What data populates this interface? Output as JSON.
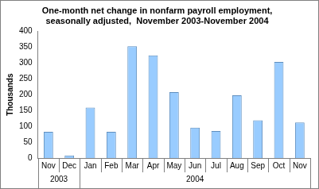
{
  "chart_data": {
    "type": "bar",
    "title": [
      "One-month net change in nonfarm payroll employment,",
      "seasonally adjusted,  November 2003-November 2004"
    ],
    "y_label": "Thousands",
    "categories": [
      "Nov",
      "Dec",
      "Jan",
      "Feb",
      "Mar",
      "Apr",
      "May",
      "Jun",
      "Jul",
      "Aug",
      "Sep",
      "Oct",
      "Nov"
    ],
    "values": [
      83,
      8,
      159,
      83,
      353,
      324,
      208,
      96,
      85,
      198,
      119,
      303,
      112
    ],
    "x_groups": [
      {
        "label": "2003",
        "span": 2
      },
      {
        "label": "2004",
        "span": 11
      }
    ],
    "color": "#99ccff",
    "ylim": [
      0,
      400
    ],
    "yticks": [
      0,
      50,
      100,
      150,
      200,
      250,
      300,
      350,
      400
    ],
    "grid": false
  }
}
